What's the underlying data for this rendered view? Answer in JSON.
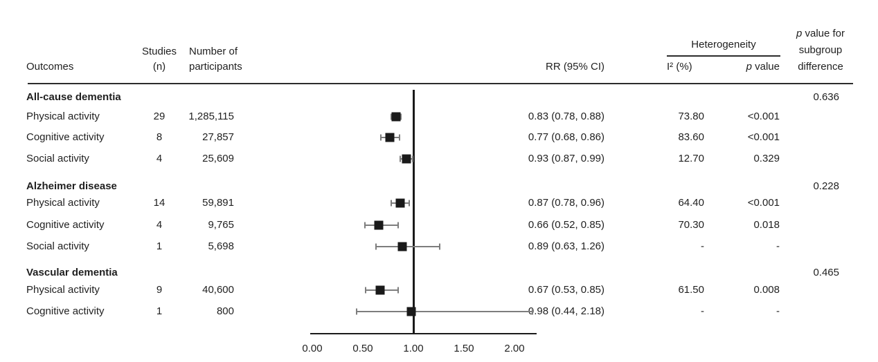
{
  "figure": {
    "background": "#ffffff",
    "text_color": "#1f1f1f",
    "marker_color": "#1a1a1a",
    "ci_color": "#7d7d7d",
    "axis_color": "#1a1a1a",
    "rule_color": "#2b2b2b"
  },
  "header": {
    "outcomes": "Outcomes",
    "studies_line1": "Studies",
    "studies_line2": "(n)",
    "participants_line1": "Number of",
    "participants_line2": "participants",
    "rr": "RR (95% CI)",
    "heterogeneity": "Heterogeneity",
    "i2": "I² (%)",
    "p_italic": "p",
    "p_rest": " value",
    "subgroup_line1_italic": "p",
    "subgroup_line1_rest": " value for",
    "subgroup_line2": "subgroup",
    "subgroup_line3": "difference"
  },
  "chart_data": {
    "type": "forest",
    "effect_measure": "RR (95% CI)",
    "x_axis": {
      "tick_labels": [
        "0.00",
        "0.50",
        "1.00",
        "1.50",
        "2.00"
      ],
      "tick_values": [
        0,
        0.5,
        1.0,
        1.5,
        2.0
      ],
      "reference_line": 1.0,
      "xlim": [
        -0.02,
        2.22
      ],
      "grid": false
    },
    "sections": [
      {
        "name": "All-cause dementia",
        "subgroup_p": "0.636",
        "rows": [
          {
            "outcome": "Physical activity",
            "studies": "29",
            "participants": "1,285,115",
            "rr": 0.83,
            "ci_low": 0.78,
            "ci_high": 0.88,
            "rr_text": "0.83 (0.78, 0.88)",
            "i2": "73.80",
            "p": "<0.001"
          },
          {
            "outcome": "Cognitive activity",
            "studies": "8",
            "participants": "27,857",
            "rr": 0.77,
            "ci_low": 0.68,
            "ci_high": 0.86,
            "rr_text": "0.77 (0.68, 0.86)",
            "i2": "83.60",
            "p": "<0.001"
          },
          {
            "outcome": "Social activity",
            "studies": "4",
            "participants": "25,609",
            "rr": 0.93,
            "ci_low": 0.87,
            "ci_high": 0.99,
            "rr_text": "0.93 (0.87, 0.99)",
            "i2": "12.70",
            "p": "0.329"
          }
        ]
      },
      {
        "name": "Alzheimer disease",
        "subgroup_p": "0.228",
        "rows": [
          {
            "outcome": "Physical activity",
            "studies": "14",
            "participants": "59,891",
            "rr": 0.87,
            "ci_low": 0.78,
            "ci_high": 0.96,
            "rr_text": "0.87 (0.78, 0.96)",
            "i2": "64.40",
            "p": "<0.001"
          },
          {
            "outcome": "Cognitive activity",
            "studies": "4",
            "participants": "9,765",
            "rr": 0.66,
            "ci_low": 0.52,
            "ci_high": 0.85,
            "rr_text": "0.66 (0.52, 0.85)",
            "i2": "70.30",
            "p": "0.018"
          },
          {
            "outcome": "Social activity",
            "studies": "1",
            "participants": "5,698",
            "rr": 0.89,
            "ci_low": 0.63,
            "ci_high": 1.26,
            "rr_text": "0.89 (0.63, 1.26)",
            "i2": "-",
            "p": "-"
          }
        ]
      },
      {
        "name": "Vascular dementia",
        "subgroup_p": "0.465",
        "rows": [
          {
            "outcome": "Physical activity",
            "studies": "9",
            "participants": "40,600",
            "rr": 0.67,
            "ci_low": 0.53,
            "ci_high": 0.85,
            "rr_text": "0.67 (0.53, 0.85)",
            "i2": "61.50",
            "p": "0.008"
          },
          {
            "outcome": "Cognitive activity",
            "studies": "1",
            "participants": "800",
            "rr": 0.98,
            "ci_low": 0.44,
            "ci_high": 2.18,
            "rr_text": "0.98 (0.44, 2.18)",
            "i2": "-",
            "p": "-"
          }
        ]
      }
    ]
  }
}
